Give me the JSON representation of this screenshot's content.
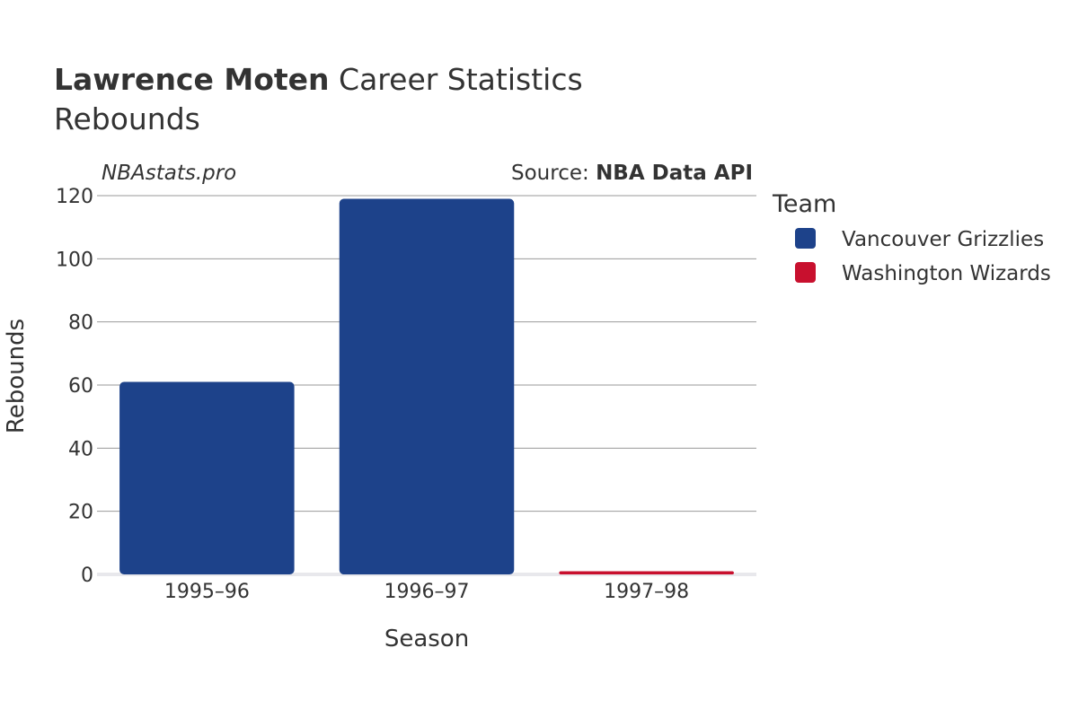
{
  "header": {
    "player_name": "Lawrence Moten",
    "title_suffix": "Career Statistics",
    "subtitle": "Rebounds"
  },
  "watermark": "NBAstats.pro",
  "source": {
    "prefix": "Source: ",
    "name": "NBA Data API"
  },
  "legend": {
    "title": "Team",
    "items": [
      {
        "label": "Vancouver Grizzlies",
        "color": "#1d428a"
      },
      {
        "label": "Washington Wizards",
        "color": "#c8102e"
      }
    ]
  },
  "chart_data": {
    "type": "bar",
    "title": "Lawrence Moten Career Statistics",
    "subtitle": "Rebounds",
    "xlabel": "Season",
    "ylabel": "Rebounds",
    "categories": [
      "1995–96",
      "1996–97",
      "1997–98"
    ],
    "series": [
      {
        "name": "Vancouver Grizzlies",
        "color": "#1d428a",
        "values": [
          61,
          119,
          null
        ]
      },
      {
        "name": "Washington Wizards",
        "color": "#c8102e",
        "values": [
          null,
          null,
          1
        ]
      }
    ],
    "ylim": [
      0,
      120
    ],
    "yticks": [
      0,
      20,
      40,
      60,
      80,
      100,
      120
    ],
    "grid": true,
    "legend_position": "right"
  }
}
